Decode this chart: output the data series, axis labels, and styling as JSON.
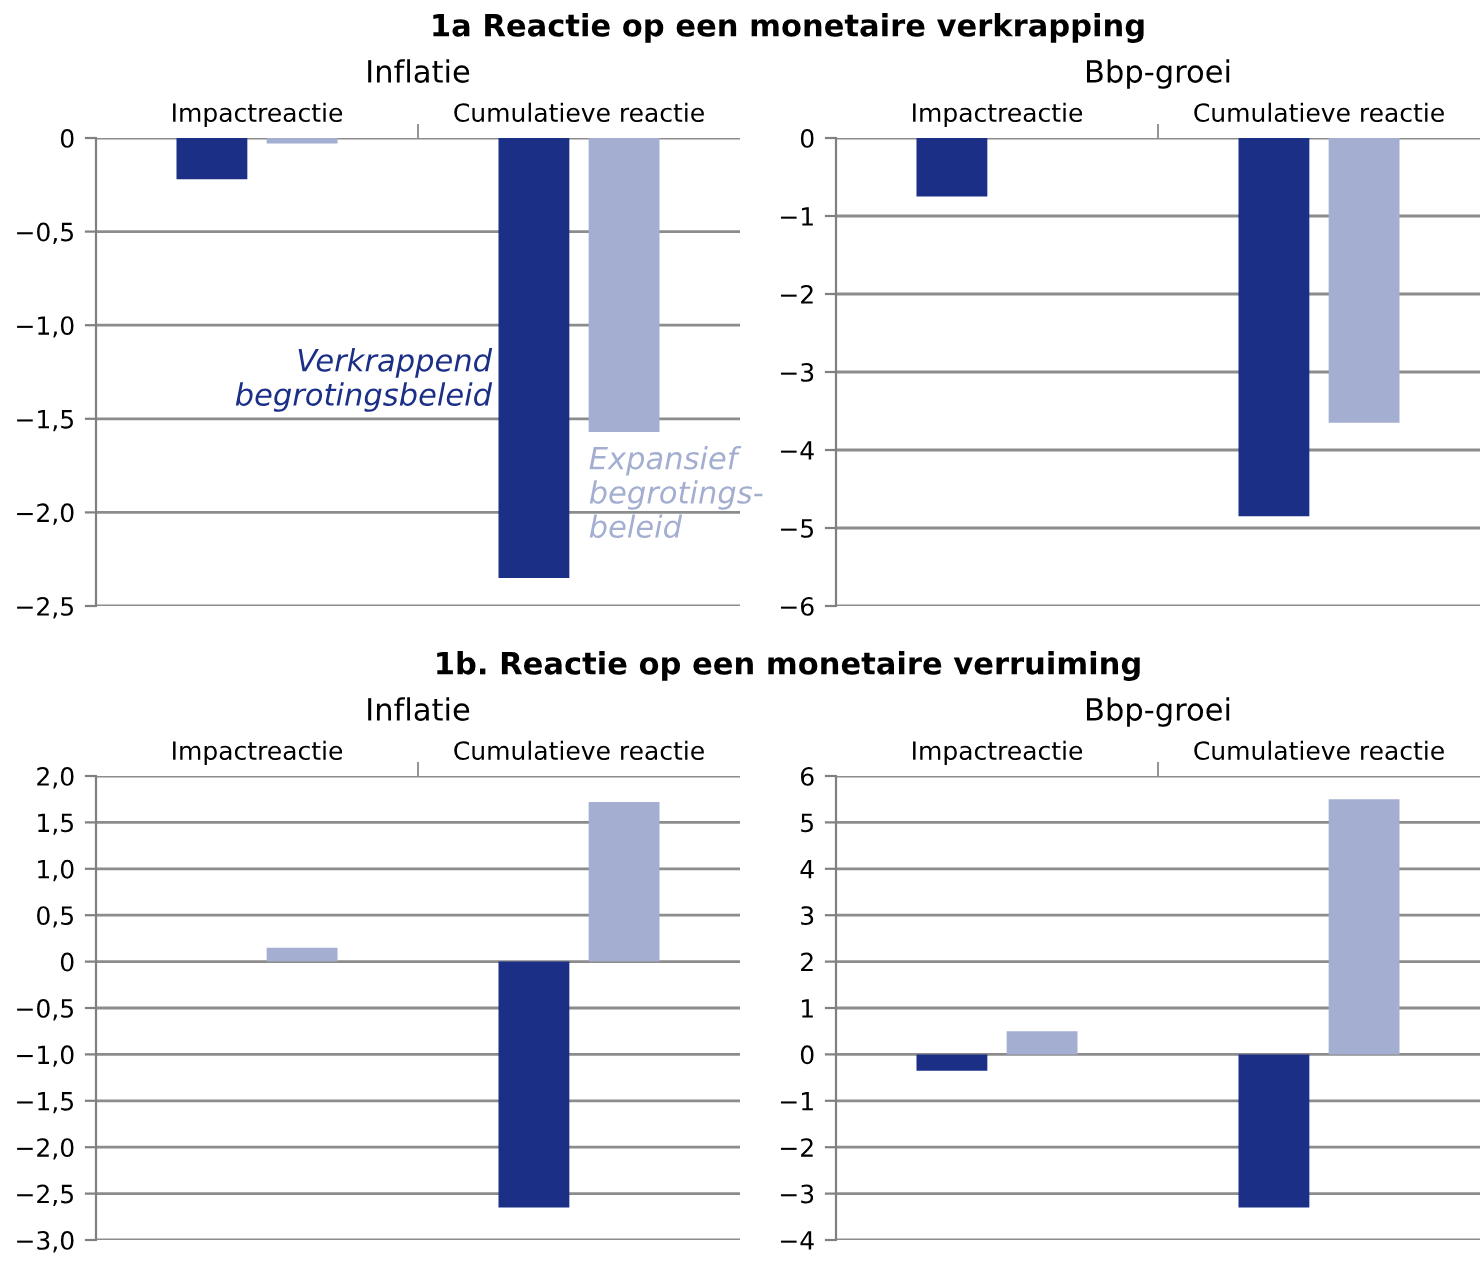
{
  "chart_data": [
    {
      "type": "bar",
      "title": "1a Reactie op een monetaire verkrapping",
      "subtitle": "Inflatie",
      "categories": [
        "Impactreactie",
        "Cumulatieve reactie"
      ],
      "grid": "y",
      "series": [
        {
          "name": "Verkrappend\nbegrotingsbeleid",
          "color": "#1b2f87",
          "values": [
            -0.22,
            -2.35
          ]
        },
        {
          "name": "Expansief\nbegrotings-\nbeleid",
          "color": "#a3aed0",
          "values": [
            -0.03,
            -1.57
          ]
        }
      ],
      "ylim": [
        -2.5,
        0
      ],
      "yticks": [
        {
          "value": -2.5,
          "label": "−2,5"
        },
        {
          "value": -2,
          "label": "−2,0"
        },
        {
          "value": -1.5,
          "label": "−1,5"
        },
        {
          "value": -1,
          "label": "−1,0"
        },
        {
          "value": -0.5,
          "label": "−0,5"
        },
        0
      ]
    },
    {
      "type": "bar",
      "subtitle": "Bbp-groei",
      "categories": [
        "Impactreactie",
        "Cumulatieve reactie"
      ],
      "grid": "y",
      "series": [
        {
          "color": "#1b2f87",
          "values": [
            -0.75,
            -4.85
          ]
        },
        {
          "color": "#a3aed0",
          "values": [
            0,
            -3.65
          ]
        }
      ],
      "ylim": [
        -6,
        0
      ],
      "yticks": [
        {
          "value": -6,
          "label": "−6"
        },
        {
          "value": -5,
          "label": "−5"
        },
        {
          "value": -4,
          "label": "−4"
        },
        {
          "value": -3,
          "label": "−3"
        },
        {
          "value": -2,
          "label": "−2"
        },
        {
          "value": -1,
          "label": "−1"
        },
        0
      ]
    },
    {
      "type": "bar",
      "title": "1b. Reactie op een monetaire verruiming",
      "subtitle": "Inflatie",
      "categories": [
        "Impactreactie",
        "Cumulatieve reactie"
      ],
      "grid": "y",
      "series": [
        {
          "color": "#1b2f87",
          "values": [
            0,
            -2.65
          ]
        },
        {
          "color": "#a3aed0",
          "values": [
            0.15,
            1.72
          ]
        }
      ],
      "ylim": [
        -3,
        2
      ],
      "yticks": [
        {
          "value": -3,
          "label": "−3,0"
        },
        {
          "value": -2.5,
          "label": "−2,5"
        },
        {
          "value": -2,
          "label": "−2,0"
        },
        {
          "value": -1.5,
          "label": "−1,5"
        },
        {
          "value": -1,
          "label": "−1,0"
        },
        {
          "value": -0.5,
          "label": "−0,5"
        },
        0,
        {
          "value": 0.5,
          "label": "0,5"
        },
        {
          "value": 1,
          "label": "1,0"
        },
        {
          "value": 1.5,
          "label": "1,5"
        },
        {
          "value": 2,
          "label": "2,0"
        }
      ]
    },
    {
      "type": "bar",
      "subtitle": "Bbp-groei",
      "categories": [
        "Impactreactie",
        "Cumulatieve reactie"
      ],
      "grid": "y",
      "series": [
        {
          "color": "#1b2f87",
          "values": [
            -0.35,
            -3.3
          ]
        },
        {
          "color": "#a3aed0",
          "values": [
            0.5,
            5.5
          ]
        }
      ],
      "ylim": [
        -4,
        6
      ],
      "yticks": [
        {
          "value": -4,
          "label": "−4"
        },
        {
          "value": -3,
          "label": "−3"
        },
        {
          "value": -2,
          "label": "−2"
        },
        {
          "value": -1,
          "label": "−1"
        },
        0,
        1,
        2,
        3,
        4,
        5,
        6
      ]
    }
  ]
}
